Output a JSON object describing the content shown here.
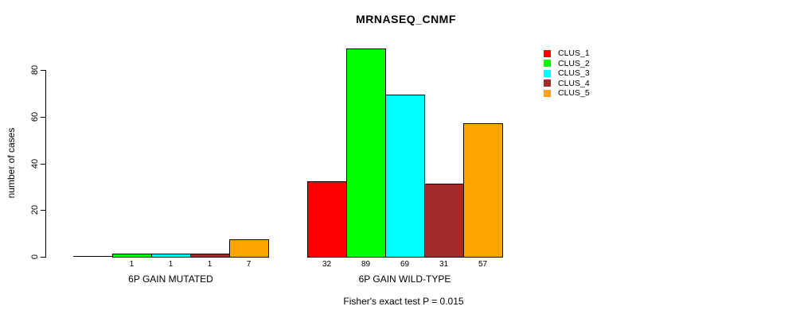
{
  "chart_data": {
    "type": "bar",
    "title": "MRNASEQ_CNMF",
    "ylabel": "number of cases",
    "xlabel": "",
    "annotation": "Fisher's exact test P = 0.015",
    "categories": [
      "6P GAIN MUTATED",
      "6P GAIN WILD-TYPE"
    ],
    "series": [
      {
        "name": "CLUS_1",
        "color": "#FF0000",
        "values": [
          0,
          32
        ]
      },
      {
        "name": "CLUS_2",
        "color": "#00FF00",
        "values": [
          1,
          89
        ]
      },
      {
        "name": "CLUS_3",
        "color": "#00FFFF",
        "values": [
          1,
          69
        ]
      },
      {
        "name": "CLUS_4",
        "color": "#A52A2A",
        "values": [
          1,
          31
        ]
      },
      {
        "name": "CLUS_5",
        "color": "#FFA500",
        "values": [
          7,
          57
        ]
      }
    ],
    "bar_value_labels": [
      [
        "",
        "1",
        "1",
        "1",
        "7"
      ],
      [
        "32",
        "89",
        "69",
        "31",
        "57"
      ]
    ],
    "yticks": [
      0,
      20,
      40,
      60,
      80
    ],
    "ylim": [
      0,
      89
    ],
    "grid": false,
    "legend_position": "top-right",
    "legend": {
      "entries": [
        {
          "label": "CLUS_1",
          "color": "#FF0000"
        },
        {
          "label": "CLUS_2",
          "color": "#00FF00"
        },
        {
          "label": "CLUS_3",
          "color": "#00FFFF"
        },
        {
          "label": "CLUS_4",
          "color": "#A52A2A"
        },
        {
          "label": "CLUS_5",
          "color": "#FFA500"
        }
      ]
    },
    "axis_color": "#000000"
  }
}
